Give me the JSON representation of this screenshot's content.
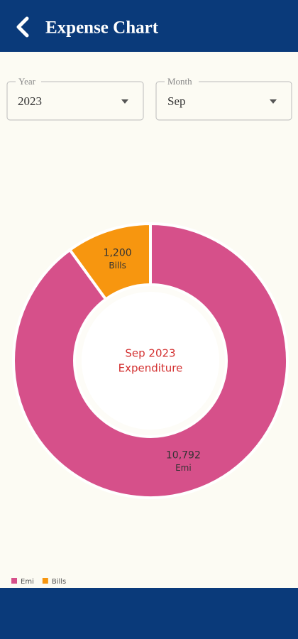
{
  "header": {
    "title": "Expense Chart"
  },
  "filters": [
    {
      "label": "Year",
      "value": "2023"
    },
    {
      "label": "Month",
      "value": "Sep"
    }
  ],
  "chart_data": {
    "type": "donut",
    "center_label": [
      "Sep 2023",
      "Expenditure"
    ],
    "categories": [
      "Emi",
      "Bills"
    ],
    "values": [
      10792,
      1200
    ],
    "value_labels": [
      "10,792",
      "1,200"
    ],
    "colors": [
      "#d6508a",
      "#f7960f"
    ],
    "legend": "bottom-left"
  }
}
